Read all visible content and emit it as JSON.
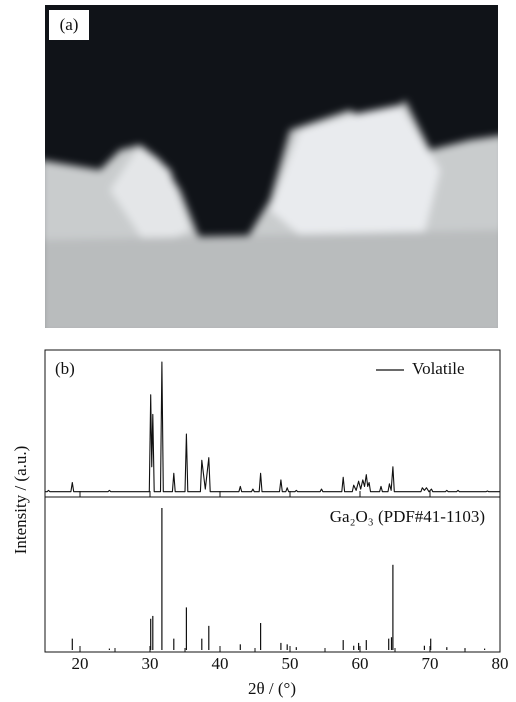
{
  "photo": {
    "label": "(a)"
  },
  "chart_data": [
    {
      "type": "line",
      "title": "(b)",
      "ylabel": "Intensity / (a.u.)",
      "xlim": [
        15,
        80
      ],
      "ylim": [
        0,
        100
      ],
      "series": [
        {
          "name": "Volatile",
          "color": "#111111",
          "x": [
            15,
            15.3,
            15.5,
            15.7,
            18.7,
            18.9,
            19.1,
            24.0,
            24.2,
            24.4,
            29.9,
            30.1,
            30.25,
            30.4,
            30.6,
            31.5,
            31.7,
            31.9,
            33.2,
            33.4,
            33.6,
            35.0,
            35.2,
            35.4,
            37.2,
            37.4,
            37.9,
            38.4,
            38.6,
            42.7,
            42.9,
            43.1,
            44.5,
            44.7,
            44.9,
            45.6,
            45.8,
            46.0,
            48.5,
            48.7,
            48.9,
            49.4,
            49.6,
            49.8,
            50.7,
            50.9,
            51.1,
            54.3,
            54.5,
            54.7,
            57.4,
            57.6,
            57.8,
            58.9,
            59.1,
            59.45,
            59.8,
            60.1,
            60.4,
            60.65,
            60.9,
            61.1,
            61.3,
            61.5,
            62.8,
            63.0,
            63.2,
            64.0,
            64.2,
            64.45,
            64.7,
            64.9,
            68.7,
            68.9,
            69.2,
            69.5,
            69.85,
            70.2,
            70.4,
            72.2,
            72.4,
            72.6,
            73.8,
            74.0,
            74.2,
            78.0,
            78.2,
            78.4,
            80
          ],
          "values": [
            1,
            1,
            2,
            1,
            1,
            8,
            1,
            1,
            2,
            1,
            1,
            75,
            20,
            60,
            1,
            1,
            100,
            1,
            1,
            15,
            1,
            1,
            45,
            1,
            1,
            25,
            3,
            27,
            1,
            1,
            5,
            1,
            1,
            3,
            1,
            1,
            15,
            1,
            1,
            10,
            1,
            1,
            4,
            1,
            1,
            2,
            1,
            1,
            3,
            1,
            1,
            12,
            1,
            1,
            6,
            2,
            9,
            3,
            10,
            5,
            14,
            5,
            8,
            1,
            1,
            5,
            1,
            1,
            7,
            2,
            20,
            1,
            1,
            4,
            2,
            4,
            1,
            3,
            1,
            1,
            2,
            1,
            1,
            2,
            1,
            1,
            1.5,
            1,
            1
          ]
        }
      ]
    },
    {
      "type": "stem",
      "xlabel": "2θ / (°)",
      "xlim": [
        15,
        80
      ],
      "ylim": [
        0,
        100
      ],
      "xticks": [
        20,
        30,
        40,
        50,
        60,
        70,
        80
      ],
      "xminor_ticks": [
        15,
        25,
        35,
        45,
        55,
        65,
        75
      ],
      "series": [
        {
          "name": "Ga₂O₃ (PDF#41-1103)",
          "color": "#111111",
          "x": [
            18.9,
            24.2,
            30.1,
            30.4,
            31.7,
            33.4,
            35.2,
            37.4,
            38.4,
            42.9,
            45.8,
            48.7,
            49.6,
            50.9,
            57.6,
            59.1,
            59.8,
            60.9,
            64.1,
            64.5,
            64.7,
            69.2,
            70.1,
            72.4,
            75.0,
            77.8
          ],
          "values": [
            8,
            1,
            22,
            24,
            100,
            8,
            30,
            8,
            17,
            4,
            19,
            5,
            4,
            2,
            7,
            3,
            5,
            7,
            8,
            9,
            60,
            3,
            8,
            2,
            1,
            1
          ]
        }
      ]
    }
  ]
}
